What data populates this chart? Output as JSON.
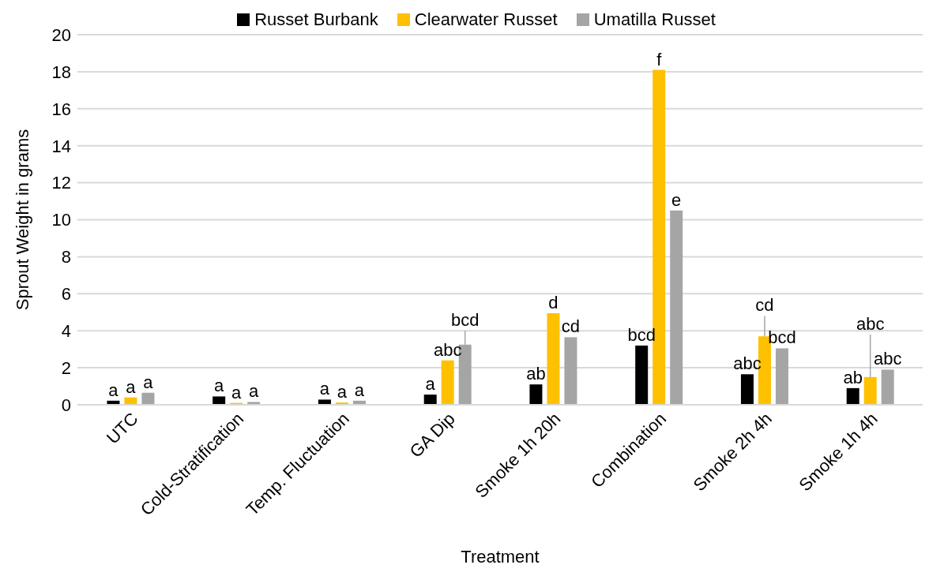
{
  "chart_data": {
    "type": "bar",
    "xlabel": "Treatment",
    "ylabel": "Sprout Weight in grams",
    "categories": [
      "UTC",
      "Cold-Stratification",
      "Temp. Fluctuation",
      "GA Dip",
      "Smoke 1h 20h",
      "Combination",
      "Smoke 2h 4h",
      "Smoke 1h 4h"
    ],
    "series": [
      {
        "name": "Russet Burbank",
        "color": "#000000",
        "values": [
          0.22,
          0.45,
          0.28,
          0.55,
          1.1,
          3.2,
          1.65,
          0.9
        ],
        "value_labels": [
          "a",
          "a",
          "a",
          "a",
          "ab",
          "bcd",
          "abc",
          "ab"
        ]
      },
      {
        "name": "Clearwater Russet",
        "color": "#ffc000",
        "values": [
          0.4,
          0.1,
          0.12,
          2.4,
          4.95,
          18.1,
          3.7,
          1.5
        ],
        "value_labels": [
          "a",
          "a",
          "a",
          "abc",
          "d",
          "f",
          "cd",
          "abc"
        ],
        "errors": [
          null,
          null,
          null,
          null,
          null,
          null,
          [
            3.7,
            4.8
          ],
          [
            1.5,
            3.8
          ]
        ]
      },
      {
        "name": "Umatilla Russet",
        "color": "#a5a5a5",
        "values": [
          0.65,
          0.15,
          0.22,
          3.25,
          3.65,
          10.5,
          3.05,
          1.9
        ],
        "value_labels": [
          "a",
          "a",
          "a",
          "bcd",
          "cd",
          "e",
          "bcd",
          "abc"
        ],
        "errors": [
          null,
          null,
          null,
          [
            3.25,
            4.0
          ],
          null,
          null,
          null,
          null
        ]
      }
    ],
    "ylim": [
      0,
      20
    ],
    "yticks": [
      0,
      2,
      4,
      6,
      8,
      10,
      12,
      14,
      16,
      18,
      20
    ],
    "grid": "y",
    "legend": "top"
  }
}
